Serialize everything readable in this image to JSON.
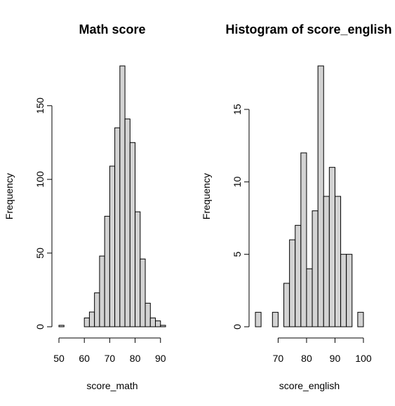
{
  "colors": {
    "bar_fill": "#d3d3d3",
    "bar_stroke": "#000000",
    "background": "#ffffff"
  },
  "chart_data": [
    {
      "type": "bar",
      "title": "Math score",
      "xlabel": "score_math",
      "ylabel": "Frequency",
      "bin_width": 2,
      "bins_start": [
        50,
        52,
        54,
        56,
        58,
        60,
        62,
        64,
        66,
        68,
        70,
        72,
        74,
        76,
        78,
        80,
        82,
        84,
        86,
        88,
        90
      ],
      "values": [
        1,
        0,
        0,
        0,
        0,
        6,
        10,
        23,
        48,
        75,
        109,
        135,
        177,
        141,
        125,
        78,
        46,
        16,
        6,
        4,
        1
      ],
      "xlim": [
        50,
        92
      ],
      "ylim": [
        0,
        177
      ],
      "x_ticks": [
        50,
        60,
        70,
        80,
        90
      ],
      "y_ticks": [
        0,
        50,
        100,
        150
      ],
      "y_ticks_labels": [
        "0",
        "50",
        "100",
        "150"
      ],
      "x_ticks_labels": [
        "50",
        "60",
        "70",
        "80",
        "90"
      ],
      "grid": false
    },
    {
      "type": "bar",
      "title": "Histogram of score_english",
      "xlabel": "score_english",
      "ylabel": "Frequency",
      "bin_width": 2,
      "bins_start": [
        62,
        64,
        66,
        68,
        70,
        72,
        74,
        76,
        78,
        80,
        82,
        84,
        86,
        88,
        90,
        92,
        94,
        96,
        98
      ],
      "values": [
        1,
        0,
        0,
        1,
        0,
        3,
        6,
        7,
        12,
        4,
        8,
        18,
        9,
        11,
        9,
        5,
        5,
        0,
        1
      ],
      "xlim": [
        62,
        100
      ],
      "ylim": [
        0,
        18
      ],
      "x_ticks": [
        70,
        80,
        90,
        100
      ],
      "y_ticks": [
        0,
        5,
        10,
        15
      ],
      "y_ticks_labels": [
        "0",
        "5",
        "10",
        "15"
      ],
      "x_ticks_labels": [
        "70",
        "80",
        "90",
        "100"
      ],
      "grid": false
    }
  ]
}
